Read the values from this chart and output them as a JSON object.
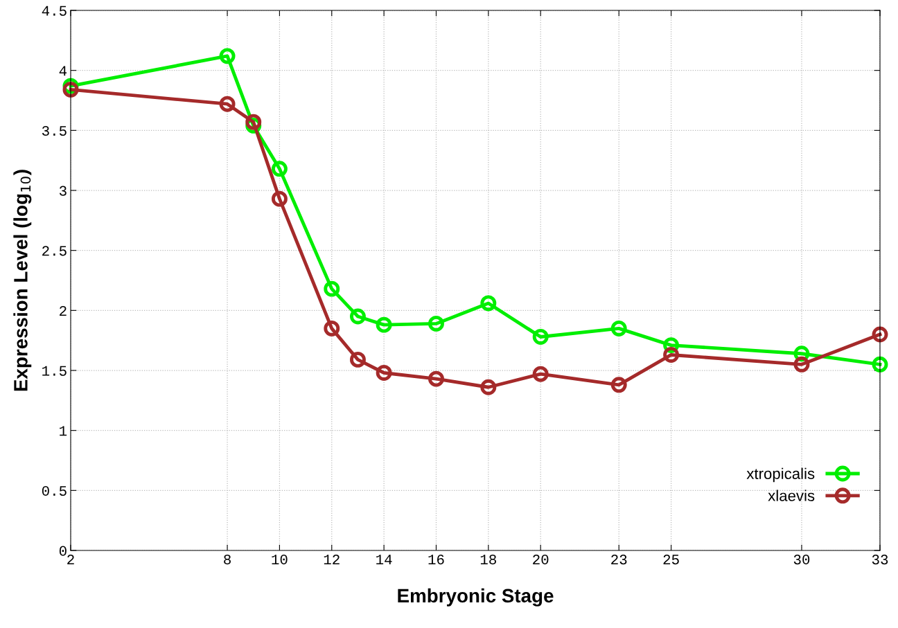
{
  "chart_data": {
    "type": "line",
    "xlabel": "Embryonic Stage",
    "ylabel": "Expression Level (log$_{10}$)",
    "xlim": [
      2,
      33
    ],
    "xticks": [
      2,
      8,
      10,
      12,
      14,
      16,
      18,
      20,
      23,
      25,
      30,
      33
    ],
    "ylim": [
      0,
      4.5
    ],
    "yticks": [
      0,
      0.5,
      1,
      1.5,
      2,
      2.5,
      3,
      3.5,
      4,
      4.5
    ],
    "grid": true,
    "legend": "bottom right",
    "marker": "circle",
    "line_style": "solid",
    "x": [
      2,
      8,
      9,
      10,
      12,
      13,
      14,
      16,
      18,
      20,
      23,
      25,
      30,
      33
    ],
    "series": [
      {
        "name": "xtropicalis",
        "color": "#00ee00",
        "values": [
          3.87,
          4.12,
          3.54,
          3.18,
          2.18,
          1.95,
          1.88,
          1.89,
          2.06,
          1.78,
          1.85,
          1.71,
          1.64,
          1.55
        ]
      },
      {
        "name": "xlaevis",
        "color": "#a52a2a",
        "values": [
          3.84,
          3.72,
          3.57,
          2.93,
          1.85,
          1.59,
          1.48,
          1.43,
          1.36,
          1.47,
          1.38,
          1.63,
          1.55,
          1.8
        ]
      }
    ]
  }
}
